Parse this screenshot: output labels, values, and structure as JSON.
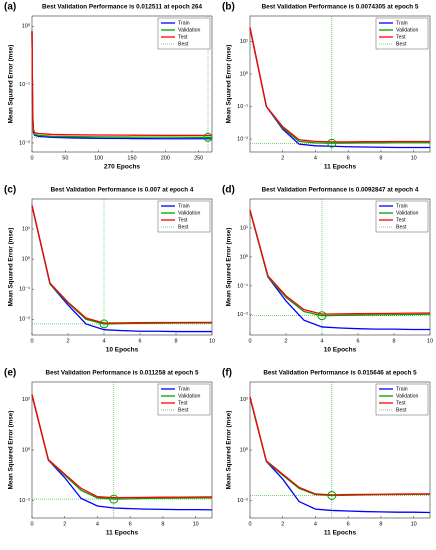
{
  "chart_data": [
    {
      "type": "line",
      "label": "(a)",
      "title": "Best Validation Performance is 0.012511 at epoch 264",
      "xlabel": "270 Epochs",
      "ylabel": "Mean Squared Error  (mse)",
      "log_y": true,
      "legend": "upper right",
      "x": [
        0,
        1,
        2,
        4,
        10,
        30,
        60,
        100,
        150,
        200,
        250,
        264,
        270
      ],
      "xlim": [
        0,
        270
      ],
      "xticks": [
        0,
        50,
        100,
        150,
        200,
        250
      ],
      "ylim": [
        0.007,
        1.5
      ],
      "yticks": [
        {
          "value": 0.01,
          "label": "10⁻²"
        },
        {
          "value": 0.1,
          "label": "10⁻¹"
        },
        {
          "value": 1,
          "label": "10⁰"
        }
      ],
      "series": [
        {
          "name": "Train",
          "color": "#0000ff",
          "values": [
            0.8,
            0.03,
            0.015,
            0.0135,
            0.013,
            0.0125,
            0.0122,
            0.012,
            0.0119,
            0.0118,
            0.0118,
            0.0118,
            0.0118
          ]
        },
        {
          "name": "Validation",
          "color": "#00a000",
          "values": [
            0.8,
            0.03,
            0.016,
            0.014,
            0.0135,
            0.013,
            0.0128,
            0.0127,
            0.0126,
            0.0126,
            0.0125,
            0.012511,
            0.0125
          ]
        },
        {
          "name": "Test",
          "color": "#ff0000",
          "values": [
            0.85,
            0.035,
            0.017,
            0.015,
            0.0145,
            0.014,
            0.0138,
            0.0137,
            0.0136,
            0.0135,
            0.0135,
            0.0135,
            0.0135
          ]
        }
      ],
      "best": {
        "name": "Best",
        "color": "#00a000",
        "x": 264,
        "y": 0.012511
      }
    },
    {
      "type": "line",
      "label": "(b)",
      "title": "Best Validation Performance is 0.0074305 at epoch 5",
      "xlabel": "11 Epochs",
      "ylabel": "Mean Squared Error  (mse)",
      "log_y": true,
      "legend": "upper right",
      "x": [
        0,
        1,
        2,
        3,
        4,
        5,
        6,
        7,
        8,
        9,
        10,
        11
      ],
      "xlim": [
        0,
        11
      ],
      "xticks": [
        2,
        4,
        6,
        8,
        10
      ],
      "ylim": [
        0.004,
        60
      ],
      "yticks": [
        {
          "value": 0.01,
          "label": "10⁻²"
        },
        {
          "value": 0.1,
          "label": "10⁻¹"
        },
        {
          "value": 1,
          "label": "10⁰"
        },
        {
          "value": 10,
          "label": "10¹"
        }
      ],
      "series": [
        {
          "name": "Train",
          "color": "#0000ff",
          "values": [
            25,
            0.1,
            0.02,
            0.007,
            0.0062,
            0.006,
            0.0058,
            0.0057,
            0.0056,
            0.0055,
            0.0055,
            0.0055
          ]
        },
        {
          "name": "Validation",
          "color": "#00a000",
          "values": [
            25,
            0.1,
            0.022,
            0.0085,
            0.0076,
            0.0074305,
            0.0075,
            0.0076,
            0.0076,
            0.0077,
            0.0077,
            0.0077
          ]
        },
        {
          "name": "Test",
          "color": "#ff0000",
          "values": [
            27,
            0.1,
            0.024,
            0.0095,
            0.0085,
            0.0082,
            0.0082,
            0.0083,
            0.0083,
            0.0084,
            0.0084,
            0.0084
          ]
        }
      ],
      "best": {
        "name": "Best",
        "color": "#00a000",
        "x": 5,
        "y": 0.0074305
      }
    },
    {
      "type": "line",
      "label": "(c)",
      "title": "Best Validation Performance is 0.007 at epoch 4",
      "xlabel": "10 Epochs",
      "ylabel": "Mean Squared Error  (mse)",
      "log_y": true,
      "legend": "upper right",
      "x": [
        0,
        1,
        2,
        3,
        4,
        5,
        6,
        7,
        8,
        9,
        10
      ],
      "xlim": [
        0,
        10
      ],
      "xticks": [
        0,
        2,
        4,
        6,
        8,
        10
      ],
      "ylim": [
        0.003,
        100
      ],
      "yticks": [
        {
          "value": 0.01,
          "label": "10⁻²"
        },
        {
          "value": 0.1,
          "label": "10⁻¹"
        },
        {
          "value": 1,
          "label": "10⁰"
        },
        {
          "value": 10,
          "label": "10¹"
        }
      ],
      "series": [
        {
          "name": "Train",
          "color": "#0000ff",
          "values": [
            60,
            0.15,
            0.03,
            0.007,
            0.0045,
            0.0042,
            0.004,
            0.004,
            0.0039,
            0.0039,
            0.0039
          ]
        },
        {
          "name": "Validation",
          "color": "#00a000",
          "values": [
            60,
            0.15,
            0.035,
            0.01,
            0.007,
            0.0072,
            0.0073,
            0.0074,
            0.0075,
            0.0075,
            0.0076
          ]
        },
        {
          "name": "Test",
          "color": "#ff0000",
          "values": [
            62,
            0.16,
            0.037,
            0.011,
            0.0075,
            0.0076,
            0.0077,
            0.0078,
            0.0078,
            0.0079,
            0.0079
          ]
        }
      ],
      "best": {
        "name": "Best",
        "color": "#00a000",
        "x": 4,
        "y": 0.007
      }
    },
    {
      "type": "line",
      "label": "(d)",
      "title": "Best Validation Performance is 0.0092847 at epoch 4",
      "xlabel": "10 Epochs",
      "ylabel": "Mean Squared Error  (mse)",
      "log_y": true,
      "legend": "upper right",
      "x": [
        0,
        1,
        2,
        3,
        4,
        5,
        6,
        7,
        8,
        9,
        10
      ],
      "xlim": [
        0,
        10
      ],
      "xticks": [
        0,
        2,
        4,
        6,
        8,
        10
      ],
      "ylim": [
        0.002,
        100
      ],
      "yticks": [
        {
          "value": 0.01,
          "label": "10⁻²"
        },
        {
          "value": 0.1,
          "label": "10⁻¹"
        },
        {
          "value": 1,
          "label": "10⁰"
        },
        {
          "value": 10,
          "label": "10¹"
        }
      ],
      "series": [
        {
          "name": "Train",
          "color": "#0000ff",
          "values": [
            40,
            0.2,
            0.03,
            0.0065,
            0.0038,
            0.0035,
            0.0033,
            0.0032,
            0.0032,
            0.0031,
            0.0031
          ]
        },
        {
          "name": "Validation",
          "color": "#00a000",
          "values": [
            40,
            0.2,
            0.04,
            0.013,
            0.0092847,
            0.0095,
            0.0097,
            0.0099,
            0.01,
            0.0102,
            0.0104
          ]
        },
        {
          "name": "Test",
          "color": "#ff0000",
          "values": [
            42,
            0.22,
            0.045,
            0.015,
            0.0105,
            0.0107,
            0.0109,
            0.011,
            0.0112,
            0.0114,
            0.0115
          ]
        }
      ],
      "best": {
        "name": "Best",
        "color": "#00a000",
        "x": 4,
        "y": 0.0092847
      }
    },
    {
      "type": "line",
      "label": "(e)",
      "title": "Best Validation Performance is 0.011258 at epoch 5",
      "xlabel": "11 Epochs",
      "ylabel": "Mean Squared Error  (mse)",
      "log_y": true,
      "legend": "upper right",
      "x": [
        0,
        1,
        2,
        3,
        4,
        5,
        6,
        7,
        8,
        9,
        10,
        11
      ],
      "xlim": [
        0,
        11
      ],
      "xticks": [
        0,
        2,
        4,
        6,
        8,
        10
      ],
      "ylim": [
        0.002,
        500
      ],
      "yticks": [
        {
          "value": 0.01,
          "label": "10⁻²"
        },
        {
          "value": 1,
          "label": "10⁰"
        },
        {
          "value": 100,
          "label": "10²"
        }
      ],
      "series": [
        {
          "name": "Train",
          "color": "#0000ff",
          "values": [
            150,
            0.4,
            0.08,
            0.012,
            0.006,
            0.005,
            0.0047,
            0.0045,
            0.0044,
            0.0043,
            0.0043,
            0.0042
          ]
        },
        {
          "name": "Validation",
          "color": "#00a000",
          "values": [
            150,
            0.4,
            0.1,
            0.025,
            0.0125,
            0.011258,
            0.0115,
            0.012,
            0.0122,
            0.0124,
            0.0125,
            0.0126
          ]
        },
        {
          "name": "Test",
          "color": "#ff0000",
          "values": [
            160,
            0.42,
            0.11,
            0.03,
            0.014,
            0.0128,
            0.013,
            0.0132,
            0.0134,
            0.0135,
            0.0136,
            0.0137
          ]
        }
      ],
      "best": {
        "name": "Best",
        "color": "#00a000",
        "x": 5,
        "y": 0.011258
      }
    },
    {
      "type": "line",
      "label": "(f)",
      "title": "Best Validation Performance is 0.015646 at epoch 5",
      "xlabel": "11 Epochs",
      "ylabel": "Mean Squared Error  (mse)",
      "log_y": true,
      "legend": "upper right",
      "x": [
        0,
        1,
        2,
        3,
        4,
        5,
        6,
        7,
        8,
        9,
        10,
        11
      ],
      "xlim": [
        0,
        11
      ],
      "xticks": [
        0,
        2,
        4,
        6,
        8,
        10
      ],
      "ylim": [
        0.002,
        500
      ],
      "yticks": [
        {
          "value": 0.01,
          "label": "10⁻²"
        },
        {
          "value": 1,
          "label": "10⁰"
        },
        {
          "value": 100,
          "label": "10²"
        }
      ],
      "series": [
        {
          "name": "Train",
          "color": "#0000ff",
          "values": [
            120,
            0.35,
            0.07,
            0.009,
            0.0045,
            0.004,
            0.0038,
            0.0036,
            0.0035,
            0.0034,
            0.0034,
            0.0033
          ]
        },
        {
          "name": "Validation",
          "color": "#00a000",
          "values": [
            120,
            0.35,
            0.1,
            0.03,
            0.017,
            0.015646,
            0.016,
            0.0165,
            0.017,
            0.0172,
            0.0174,
            0.0175
          ]
        },
        {
          "name": "Test",
          "color": "#ff0000",
          "values": [
            130,
            0.37,
            0.11,
            0.033,
            0.018,
            0.0165,
            0.017,
            0.0172,
            0.0175,
            0.0178,
            0.018,
            0.018
          ]
        }
      ],
      "best": {
        "name": "Best",
        "color": "#00a000",
        "x": 5,
        "y": 0.015646
      }
    }
  ]
}
